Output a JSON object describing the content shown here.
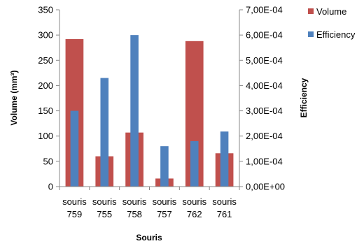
{
  "chart_data": {
    "type": "bar",
    "categories": [
      [
        "souris",
        "759"
      ],
      [
        "souris",
        "755"
      ],
      [
        "souris",
        "758"
      ],
      [
        "souris",
        "757"
      ],
      [
        "souris",
        "762"
      ],
      [
        "souris",
        "761"
      ]
    ],
    "xlabel": "Souris",
    "ylabel": "Volume (mm³)",
    "y2label": "Efficiency",
    "ylim": [
      0,
      350
    ],
    "y2lim": [
      0,
      0.0007
    ],
    "yticks": [
      "0",
      "50",
      "100",
      "150",
      "200",
      "250",
      "300",
      "350"
    ],
    "y2ticks": [
      "0,00E+00",
      "1,00E-04",
      "2,00E-04",
      "3,00E-04",
      "4,00E-04",
      "5,00E-04",
      "6,00E-04",
      "7,00E-04"
    ],
    "grid": false,
    "legend_position": "right",
    "series": [
      {
        "name": "Volume",
        "axis": "left",
        "color": "#c0504d",
        "values": [
          292,
          60,
          107,
          16,
          288,
          66
        ]
      },
      {
        "name": "Efficiency",
        "axis": "right",
        "color": "#4f81bd",
        "values": [
          0.0003,
          0.00043,
          0.0006,
          0.00016,
          0.00018,
          0.000218
        ]
      }
    ]
  }
}
